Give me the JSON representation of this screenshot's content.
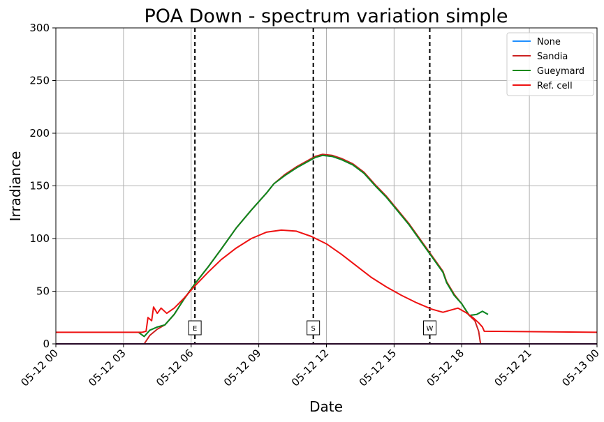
{
  "chart_data": {
    "type": "line",
    "title": "POA Down - spectrum variation simple",
    "xlabel": "Date",
    "ylabel": "Irradiance",
    "x_range": [
      "05-12 00:00",
      "05-13 00:00"
    ],
    "ylim": [
      0,
      300
    ],
    "x_ticks": [
      "05-12 00",
      "05-12 03",
      "05-12 06",
      "05-12 09",
      "05-12 12",
      "05-12 15",
      "05-12 18",
      "05-12 21",
      "05-13 00"
    ],
    "y_ticks": [
      0,
      50,
      100,
      150,
      200,
      250,
      300
    ],
    "grid": true,
    "legend_position": "top-right",
    "series": [
      {
        "name": "None",
        "color": "#1f8fff",
        "points": [
          [
            "05-12 03:40",
            11
          ],
          [
            "05-12 03:55",
            7
          ],
          [
            "05-12 04:10",
            13
          ],
          [
            "05-12 04:30",
            16
          ],
          [
            "05-12 04:50",
            18
          ],
          [
            "05-12 05:15",
            28
          ],
          [
            "05-12 05:40",
            42
          ],
          [
            "05-12 06:10",
            57
          ],
          [
            "05-12 06:45",
            73
          ],
          [
            "05-12 07:20",
            90
          ],
          [
            "05-12 08:00",
            110
          ],
          [
            "05-12 08:40",
            127
          ],
          [
            "05-12 09:20",
            143
          ],
          [
            "05-12 09:40",
            152
          ],
          [
            "05-12 10:10",
            160
          ],
          [
            "05-12 10:40",
            167
          ],
          [
            "05-12 11:10",
            173
          ],
          [
            "05-12 11:30",
            177
          ],
          [
            "05-12 11:50",
            179
          ],
          [
            "05-12 12:15",
            178
          ],
          [
            "05-12 12:40",
            175
          ],
          [
            "05-12 13:10",
            170
          ],
          [
            "05-12 13:40",
            162
          ],
          [
            "05-12 14:10",
            150
          ],
          [
            "05-12 14:40",
            139
          ],
          [
            "05-12 15:10",
            126
          ],
          [
            "05-12 15:40",
            113
          ],
          [
            "05-12 16:10",
            98
          ],
          [
            "05-12 16:40",
            83
          ],
          [
            "05-12 17:10",
            68
          ],
          [
            "05-12 17:20",
            58
          ],
          [
            "05-12 17:40",
            46
          ],
          [
            "05-12 18:00",
            38
          ],
          [
            "05-12 18:20",
            27
          ],
          [
            "05-12 18:40",
            28
          ],
          [
            "05-12 18:55",
            31
          ],
          [
            "05-12 19:10",
            28
          ]
        ]
      },
      {
        "name": "Sandia",
        "color": "#cc2020",
        "points": [
          [
            "05-12 00:00",
            0
          ],
          [
            "05-12 03:55",
            0
          ],
          [
            "05-12 04:10",
            8
          ],
          [
            "05-12 04:30",
            14
          ],
          [
            "05-12 04:50",
            18
          ],
          [
            "05-12 05:15",
            28
          ],
          [
            "05-12 05:40",
            42
          ],
          [
            "05-12 06:10",
            57
          ],
          [
            "05-12 06:45",
            73
          ],
          [
            "05-12 07:20",
            90
          ],
          [
            "05-12 08:00",
            110
          ],
          [
            "05-12 08:40",
            127
          ],
          [
            "05-12 09:20",
            143
          ],
          [
            "05-12 09:40",
            152
          ],
          [
            "05-12 10:10",
            161
          ],
          [
            "05-12 10:40",
            168
          ],
          [
            "05-12 11:10",
            174
          ],
          [
            "05-12 11:30",
            178
          ],
          [
            "05-12 11:50",
            180
          ],
          [
            "05-12 12:15",
            179
          ],
          [
            "05-12 12:40",
            176
          ],
          [
            "05-12 13:10",
            171
          ],
          [
            "05-12 13:40",
            163
          ],
          [
            "05-12 14:10",
            151
          ],
          [
            "05-12 14:40",
            140
          ],
          [
            "05-12 15:10",
            127
          ],
          [
            "05-12 15:40",
            114
          ],
          [
            "05-12 16:10",
            99
          ],
          [
            "05-12 16:40",
            84
          ],
          [
            "05-12 17:10",
            69
          ],
          [
            "05-12 17:20",
            59
          ],
          [
            "05-12 17:40",
            47
          ],
          [
            "05-12 18:00",
            38
          ],
          [
            "05-12 18:20",
            27
          ],
          [
            "05-12 18:35",
            22
          ],
          [
            "05-12 18:45",
            12
          ],
          [
            "05-12 18:50",
            0
          ],
          [
            "05-13 00:00",
            0
          ]
        ]
      },
      {
        "name": "Gueymard",
        "color": "#10891a",
        "points": [
          [
            "05-12 03:40",
            11
          ],
          [
            "05-12 03:55",
            7
          ],
          [
            "05-12 04:10",
            13
          ],
          [
            "05-12 04:30",
            16
          ],
          [
            "05-12 04:50",
            18
          ],
          [
            "05-12 05:15",
            28
          ],
          [
            "05-12 05:40",
            42
          ],
          [
            "05-12 06:10",
            57
          ],
          [
            "05-12 06:45",
            73
          ],
          [
            "05-12 07:20",
            90
          ],
          [
            "05-12 08:00",
            110
          ],
          [
            "05-12 08:40",
            127
          ],
          [
            "05-12 09:20",
            143
          ],
          [
            "05-12 09:40",
            152
          ],
          [
            "05-12 10:10",
            160
          ],
          [
            "05-12 10:40",
            167
          ],
          [
            "05-12 11:10",
            173
          ],
          [
            "05-12 11:30",
            177
          ],
          [
            "05-12 11:50",
            179
          ],
          [
            "05-12 12:15",
            178
          ],
          [
            "05-12 12:40",
            175
          ],
          [
            "05-12 13:10",
            170
          ],
          [
            "05-12 13:40",
            162
          ],
          [
            "05-12 14:10",
            150
          ],
          [
            "05-12 14:40",
            139
          ],
          [
            "05-12 15:10",
            126
          ],
          [
            "05-12 15:40",
            113
          ],
          [
            "05-12 16:10",
            98
          ],
          [
            "05-12 16:40",
            83
          ],
          [
            "05-12 17:10",
            68
          ],
          [
            "05-12 17:20",
            58
          ],
          [
            "05-12 17:40",
            46
          ],
          [
            "05-12 18:00",
            38
          ],
          [
            "05-12 18:20",
            27
          ],
          [
            "05-12 18:40",
            28
          ],
          [
            "05-12 18:55",
            31
          ],
          [
            "05-12 19:10",
            28
          ]
        ]
      },
      {
        "name": "Ref. cell",
        "color": "#ee1111",
        "points": [
          [
            "05-12 00:00",
            11
          ],
          [
            "05-12 03:50",
            11
          ],
          [
            "05-12 04:00",
            12
          ],
          [
            "05-12 04:05",
            25
          ],
          [
            "05-12 04:15",
            22
          ],
          [
            "05-12 04:20",
            35
          ],
          [
            "05-12 04:30",
            29
          ],
          [
            "05-12 04:40",
            34
          ],
          [
            "05-12 04:55",
            29
          ],
          [
            "05-12 05:15",
            34
          ],
          [
            "05-12 05:40",
            43
          ],
          [
            "05-12 06:10",
            55
          ],
          [
            "05-12 06:45",
            68
          ],
          [
            "05-12 07:20",
            80
          ],
          [
            "05-12 08:00",
            91
          ],
          [
            "05-12 08:40",
            100
          ],
          [
            "05-12 09:20",
            106
          ],
          [
            "05-12 10:00",
            108
          ],
          [
            "05-12 10:40",
            107
          ],
          [
            "05-12 11:20",
            102
          ],
          [
            "05-12 12:00",
            95
          ],
          [
            "05-12 12:40",
            85
          ],
          [
            "05-12 13:20",
            74
          ],
          [
            "05-12 14:00",
            63
          ],
          [
            "05-12 14:40",
            54
          ],
          [
            "05-12 15:20",
            46
          ],
          [
            "05-12 16:00",
            39
          ],
          [
            "05-12 16:40",
            33
          ],
          [
            "05-12 17:10",
            30
          ],
          [
            "05-12 17:30",
            32
          ],
          [
            "05-12 17:50",
            34
          ],
          [
            "05-12 18:10",
            30
          ],
          [
            "05-12 18:30",
            25
          ],
          [
            "05-12 18:45",
            20
          ],
          [
            "05-12 18:55",
            16
          ],
          [
            "05-12 19:00",
            12
          ],
          [
            "05-13 00:00",
            11
          ]
        ]
      }
    ],
    "vertical_markers": [
      {
        "label": "E",
        "x": "05-12 06:10"
      },
      {
        "label": "S",
        "x": "05-12 11:25"
      },
      {
        "label": "W",
        "x": "05-12 16:35"
      }
    ]
  }
}
